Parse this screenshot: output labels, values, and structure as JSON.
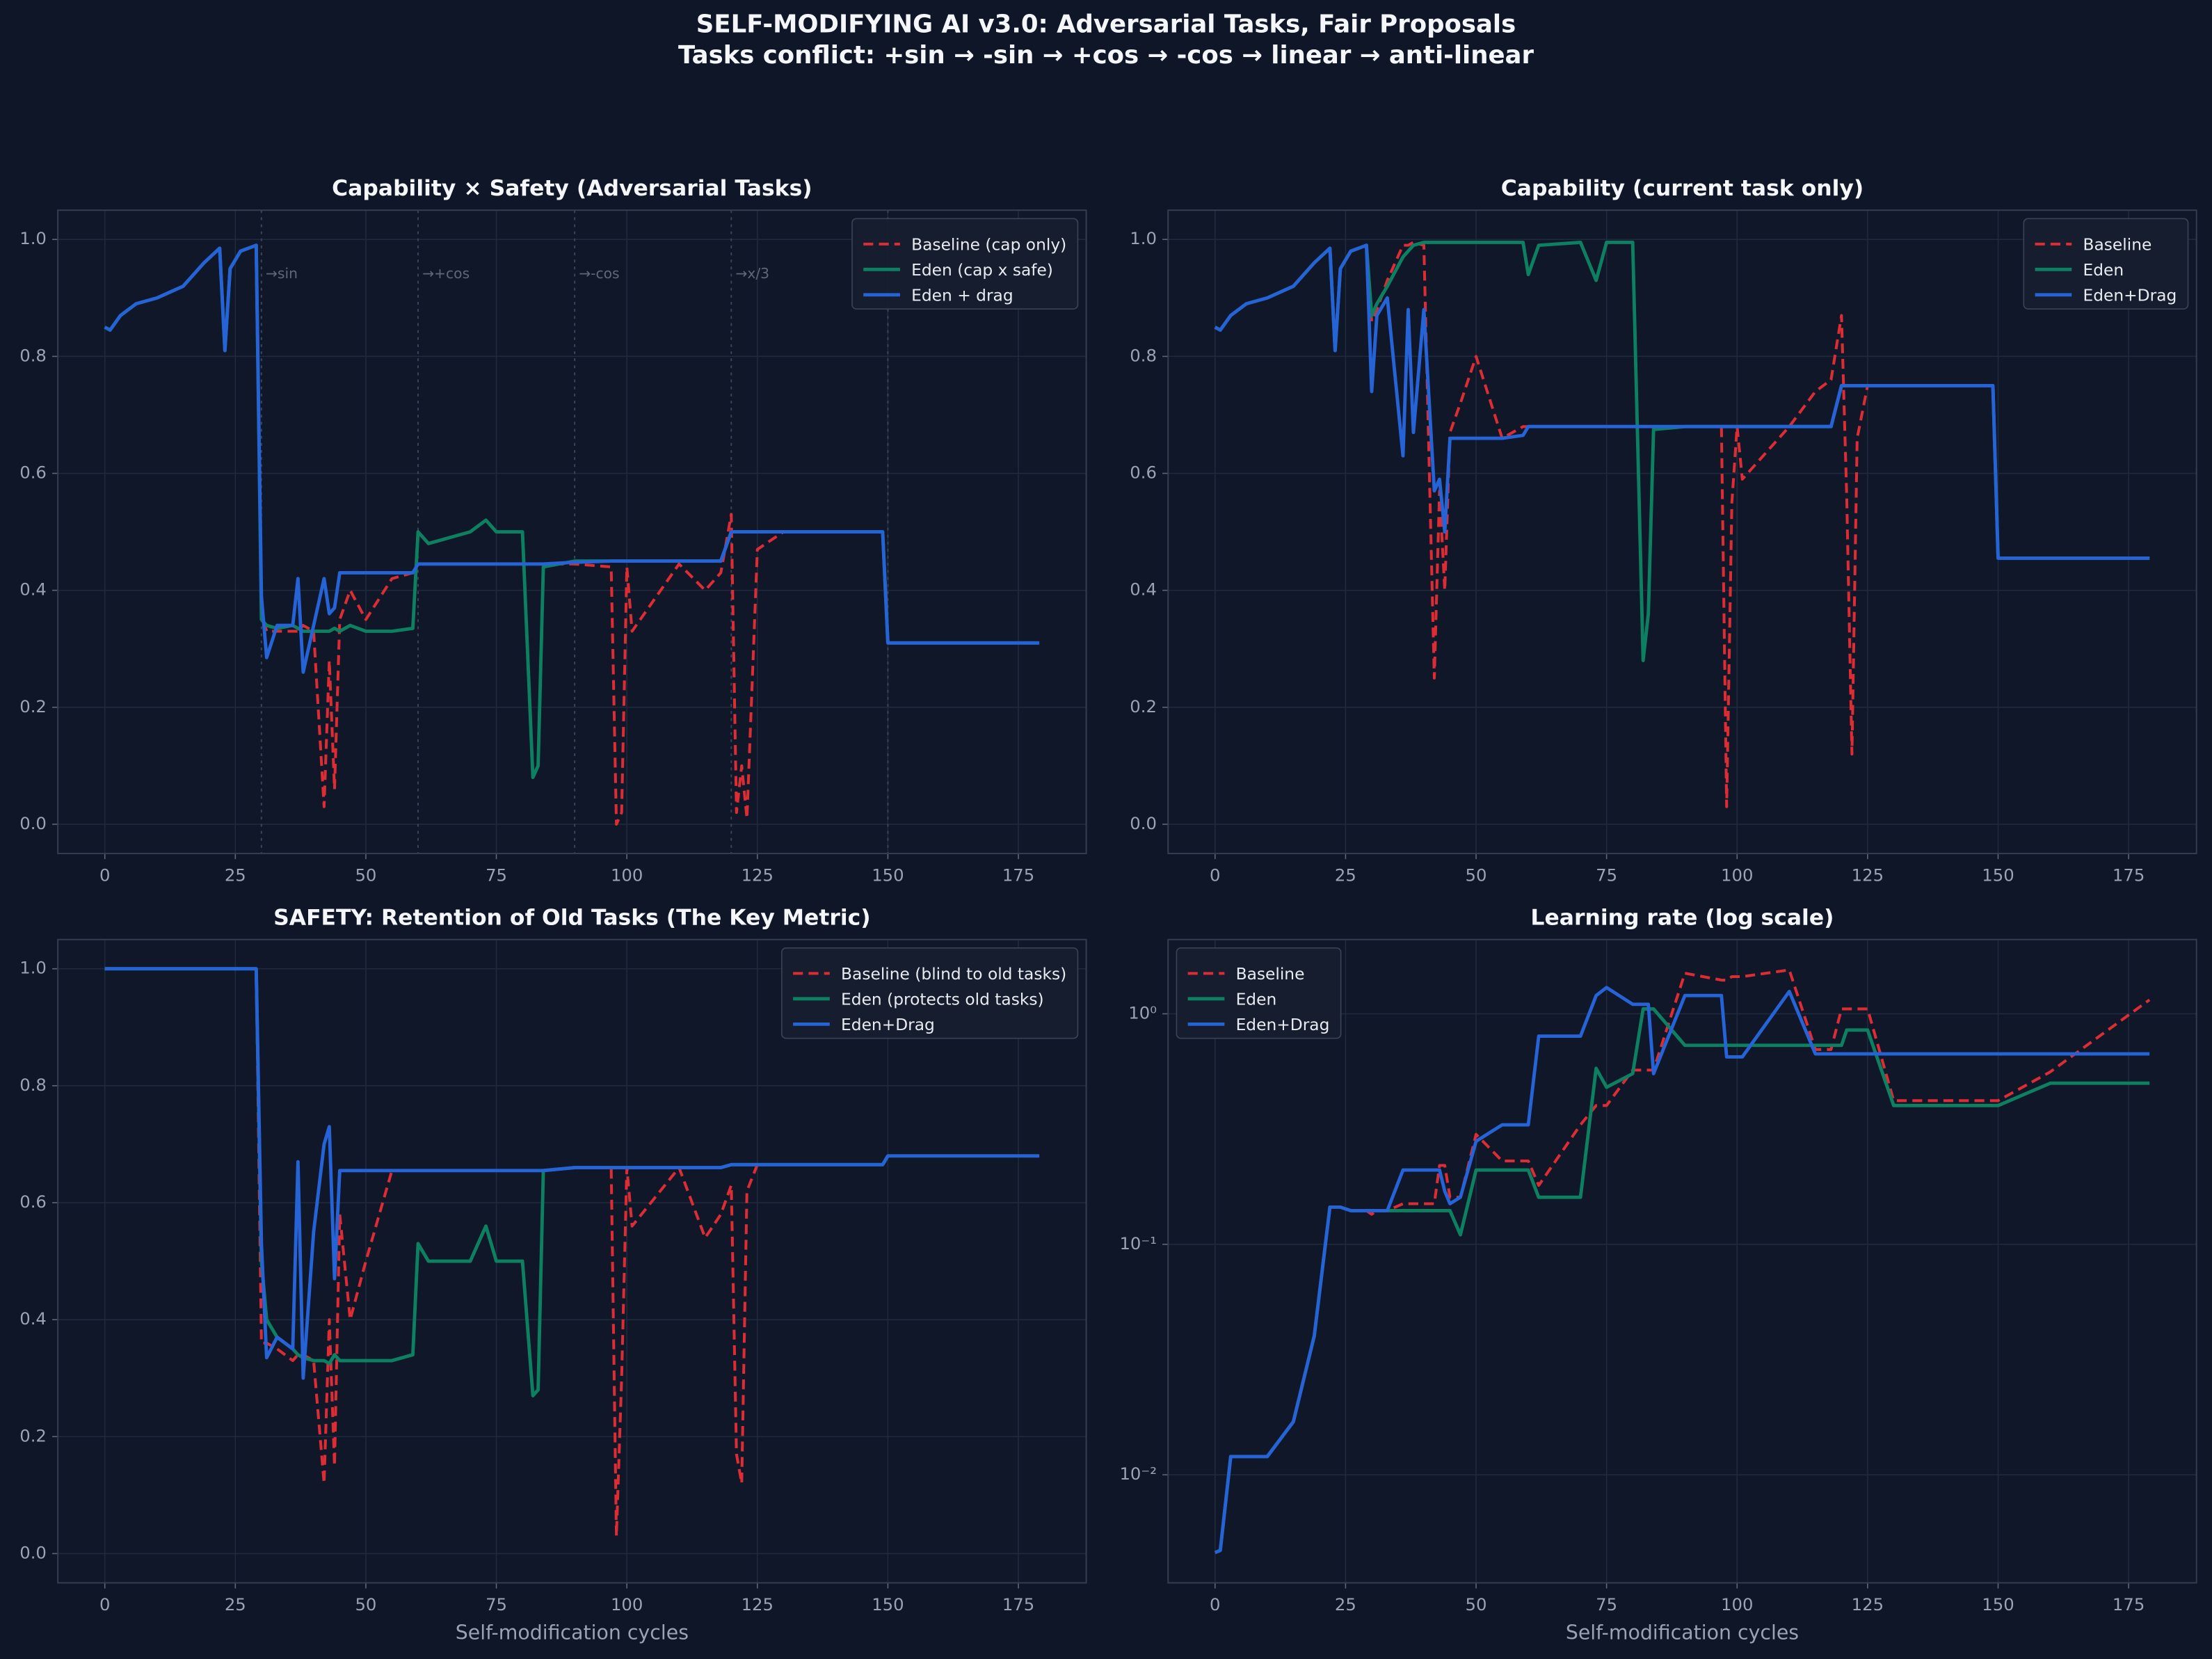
{
  "title": "SELF-MODIFYING AI v3.0: Adversarial Tasks, Fair Proposals",
  "subtitle": "Tasks conflict: +sin → -sin → +cos → -cos → linear → anti-linear",
  "chart_data": [
    {
      "type": "line",
      "title": "Capability × Safety (Adversarial Tasks)",
      "grid": true,
      "legend": "upper right",
      "xlim": [
        -9,
        188
      ],
      "ylim": [
        -0.05,
        1.05
      ],
      "xticks": [
        0,
        25,
        50,
        75,
        100,
        125,
        150,
        175
      ],
      "yticks": [
        {
          "value": 0,
          "label": "0.0"
        },
        0.2,
        0.4,
        0.6,
        0.8,
        {
          "value": 1,
          "label": "1.0"
        }
      ],
      "vlines": [
        30,
        60,
        90,
        120,
        150
      ],
      "annotations": [
        {
          "x": 30,
          "text": "→sin"
        },
        {
          "x": 60,
          "text": "→+cos"
        },
        {
          "x": 90,
          "text": "→-cos"
        },
        {
          "x": 120,
          "text": "→x/3"
        }
      ],
      "x": [
        0,
        1,
        3,
        6,
        10,
        15,
        19,
        22,
        23,
        24,
        26,
        29,
        30,
        31,
        33,
        36,
        37,
        38,
        40,
        42,
        43,
        44,
        45,
        47,
        50,
        55,
        59,
        60,
        62,
        70,
        73,
        75,
        80,
        82,
        83,
        84,
        90,
        97,
        98,
        99,
        100,
        101,
        110,
        115,
        118,
        120,
        121,
        122,
        123,
        125,
        130,
        149,
        150,
        160,
        179
      ],
      "series": [
        {
          "name": "Baseline (cap only)",
          "color": "#dc2c34",
          "linestyle": "dashed",
          "values": [
            0.85,
            0.845,
            0.87,
            0.89,
            0.9,
            0.92,
            0.96,
            0.985,
            0.81,
            0.95,
            0.98,
            0.99,
            0.36,
            0.33,
            0.33,
            0.33,
            0.33,
            0.34,
            0.33,
            0.03,
            0.28,
            0.06,
            0.35,
            0.4,
            0.35,
            0.42,
            0.43,
            0.445,
            0.445,
            0.445,
            0.445,
            0.445,
            0.445,
            0.445,
            0.445,
            0.445,
            0.445,
            0.44,
            0.0,
            0.02,
            0.44,
            0.33,
            0.445,
            0.4,
            0.43,
            0.53,
            0.02,
            0.1,
            0.01,
            0.47,
            0.5,
            0.5,
            0.31,
            0.31,
            0.31
          ]
        },
        {
          "name": "Eden (cap x safe)",
          "color": "#0e8062",
          "linestyle": "solid",
          "values": [
            0.85,
            0.845,
            0.87,
            0.89,
            0.9,
            0.92,
            0.96,
            0.985,
            0.81,
            0.95,
            0.98,
            0.99,
            0.35,
            0.34,
            0.335,
            0.34,
            0.335,
            0.33,
            0.33,
            0.33,
            0.33,
            0.335,
            0.33,
            0.34,
            0.33,
            0.33,
            0.335,
            0.5,
            0.48,
            0.5,
            0.52,
            0.5,
            0.5,
            0.08,
            0.1,
            0.44,
            0.45,
            0.45,
            0.45,
            0.45,
            0.45,
            0.45,
            0.45,
            0.45,
            0.45,
            0.5,
            0.5,
            0.5,
            0.5,
            0.5,
            0.5,
            0.5,
            0.31,
            0.31,
            0.31
          ]
        },
        {
          "name": "Eden + drag",
          "color": "#2563d6",
          "linestyle": "solid",
          "values": [
            0.85,
            0.845,
            0.87,
            0.89,
            0.9,
            0.92,
            0.96,
            0.985,
            0.81,
            0.95,
            0.98,
            0.99,
            0.39,
            0.285,
            0.34,
            0.34,
            0.42,
            0.26,
            0.34,
            0.42,
            0.36,
            0.37,
            0.43,
            0.43,
            0.43,
            0.43,
            0.43,
            0.445,
            0.445,
            0.445,
            0.445,
            0.445,
            0.445,
            0.445,
            0.445,
            0.445,
            0.448,
            0.45,
            0.45,
            0.45,
            0.45,
            0.45,
            0.45,
            0.45,
            0.45,
            0.5,
            0.5,
            0.5,
            0.5,
            0.5,
            0.5,
            0.5,
            0.31,
            0.31,
            0.31
          ]
        }
      ]
    },
    {
      "type": "line",
      "title": "Capability (current task only)",
      "grid": true,
      "legend": "upper right",
      "xlim": [
        -9,
        188
      ],
      "ylim": [
        -0.05,
        1.05
      ],
      "xticks": [
        0,
        25,
        50,
        75,
        100,
        125,
        150,
        175
      ],
      "yticks": [
        {
          "value": 0,
          "label": "0.0"
        },
        0.2,
        0.4,
        0.6,
        0.8,
        {
          "value": 1,
          "label": "1.0"
        }
      ],
      "x": [
        0,
        1,
        3,
        6,
        10,
        15,
        19,
        22,
        23,
        24,
        26,
        29,
        30,
        31,
        33,
        36,
        37,
        38,
        40,
        42,
        43,
        44,
        45,
        47,
        50,
        55,
        59,
        60,
        62,
        70,
        73,
        75,
        80,
        82,
        83,
        84,
        90,
        97,
        98,
        99,
        100,
        101,
        110,
        115,
        118,
        120,
        121,
        122,
        123,
        125,
        130,
        149,
        150,
        160,
        179
      ],
      "series": [
        {
          "name": "Baseline",
          "color": "#dc2c34",
          "linestyle": "dashed",
          "values": [
            0.85,
            0.845,
            0.87,
            0.89,
            0.9,
            0.92,
            0.96,
            0.985,
            0.81,
            0.95,
            0.98,
            0.99,
            0.86,
            0.88,
            0.93,
            0.99,
            0.99,
            0.995,
            0.99,
            0.25,
            0.57,
            0.4,
            0.67,
            0.72,
            0.8,
            0.66,
            0.68,
            0.68,
            0.68,
            0.68,
            0.68,
            0.68,
            0.68,
            0.68,
            0.68,
            0.68,
            0.68,
            0.68,
            0.03,
            0.55,
            0.68,
            0.59,
            0.68,
            0.74,
            0.76,
            0.87,
            0.56,
            0.12,
            0.66,
            0.75,
            0.75,
            0.75,
            0.455,
            0.455,
            0.455
          ]
        },
        {
          "name": "Eden",
          "color": "#0e8062",
          "linestyle": "solid",
          "values": [
            0.85,
            0.845,
            0.87,
            0.89,
            0.9,
            0.92,
            0.96,
            0.985,
            0.81,
            0.95,
            0.98,
            0.99,
            0.87,
            0.89,
            0.92,
            0.97,
            0.98,
            0.99,
            0.995,
            0.995,
            0.995,
            0.995,
            0.995,
            0.995,
            0.995,
            0.995,
            0.995,
            0.94,
            0.99,
            0.995,
            0.93,
            0.995,
            0.995,
            0.28,
            0.36,
            0.675,
            0.68,
            0.68,
            0.68,
            0.68,
            0.68,
            0.68,
            0.68,
            0.68,
            0.68,
            0.75,
            0.75,
            0.75,
            0.75,
            0.75,
            0.75,
            0.75,
            0.455,
            0.455,
            0.455
          ]
        },
        {
          "name": "Eden+Drag",
          "color": "#2563d6",
          "linestyle": "solid",
          "values": [
            0.85,
            0.845,
            0.87,
            0.89,
            0.9,
            0.92,
            0.96,
            0.985,
            0.81,
            0.95,
            0.98,
            0.99,
            0.74,
            0.87,
            0.9,
            0.63,
            0.88,
            0.67,
            0.88,
            0.57,
            0.59,
            0.5,
            0.66,
            0.66,
            0.66,
            0.66,
            0.665,
            0.68,
            0.68,
            0.68,
            0.68,
            0.68,
            0.68,
            0.68,
            0.68,
            0.68,
            0.68,
            0.68,
            0.68,
            0.68,
            0.68,
            0.68,
            0.68,
            0.68,
            0.68,
            0.75,
            0.75,
            0.75,
            0.75,
            0.75,
            0.75,
            0.75,
            0.455,
            0.455,
            0.455
          ]
        }
      ]
    },
    {
      "type": "line",
      "title": "SAFETY: Retention of Old Tasks (The Key Metric)",
      "xlabel": "Self-modification cycles",
      "grid": true,
      "legend": "upper right",
      "xlim": [
        -9,
        188
      ],
      "ylim": [
        -0.05,
        1.05
      ],
      "xticks": [
        0,
        25,
        50,
        75,
        100,
        125,
        150,
        175
      ],
      "yticks": [
        {
          "value": 0,
          "label": "0.0"
        },
        0.2,
        0.4,
        0.6,
        0.8,
        {
          "value": 1,
          "label": "1.0"
        }
      ],
      "x": [
        0,
        1,
        3,
        6,
        10,
        15,
        19,
        22,
        23,
        24,
        26,
        29,
        30,
        31,
        33,
        36,
        37,
        38,
        40,
        42,
        43,
        44,
        45,
        47,
        50,
        55,
        59,
        60,
        62,
        70,
        73,
        75,
        80,
        82,
        83,
        84,
        90,
        97,
        98,
        99,
        100,
        101,
        110,
        115,
        118,
        120,
        121,
        122,
        123,
        125,
        130,
        149,
        150,
        160,
        179
      ],
      "series": [
        {
          "name": "Baseline (blind to old tasks)",
          "color": "#dc2c34",
          "linestyle": "dashed",
          "values": [
            1,
            1,
            1,
            1,
            1,
            1,
            1,
            1,
            1,
            1,
            1,
            1,
            0.36,
            0.36,
            0.35,
            0.33,
            0.34,
            0.34,
            0.33,
            0.12,
            0.4,
            0.15,
            0.58,
            0.4,
            0.5,
            0.655,
            0.655,
            0.655,
            0.655,
            0.655,
            0.655,
            0.655,
            0.655,
            0.655,
            0.655,
            0.655,
            0.66,
            0.66,
            0.03,
            0.3,
            0.66,
            0.56,
            0.66,
            0.54,
            0.58,
            0.63,
            0.17,
            0.12,
            0.62,
            0.665,
            0.665,
            0.665,
            0.68,
            0.68,
            0.68
          ]
        },
        {
          "name": "Eden (protects old tasks)",
          "color": "#0e8062",
          "linestyle": "solid",
          "values": [
            1,
            1,
            1,
            1,
            1,
            1,
            1,
            1,
            1,
            1,
            1,
            1,
            0.5,
            0.4,
            0.37,
            0.35,
            0.34,
            0.335,
            0.33,
            0.33,
            0.325,
            0.34,
            0.33,
            0.33,
            0.33,
            0.33,
            0.34,
            0.53,
            0.5,
            0.5,
            0.56,
            0.5,
            0.5,
            0.27,
            0.28,
            0.655,
            0.66,
            0.66,
            0.66,
            0.66,
            0.66,
            0.66,
            0.66,
            0.66,
            0.66,
            0.665,
            0.665,
            0.665,
            0.665,
            0.665,
            0.665,
            0.665,
            0.68,
            0.68,
            0.68
          ]
        },
        {
          "name": "Eden+Drag",
          "color": "#2563d6",
          "linestyle": "solid",
          "values": [
            1,
            1,
            1,
            1,
            1,
            1,
            1,
            1,
            1,
            1,
            1,
            1,
            0.53,
            0.335,
            0.37,
            0.35,
            0.67,
            0.3,
            0.55,
            0.7,
            0.73,
            0.47,
            0.655,
            0.655,
            0.655,
            0.655,
            0.655,
            0.655,
            0.655,
            0.655,
            0.655,
            0.655,
            0.655,
            0.655,
            0.655,
            0.655,
            0.66,
            0.66,
            0.66,
            0.66,
            0.66,
            0.66,
            0.66,
            0.66,
            0.66,
            0.665,
            0.665,
            0.665,
            0.665,
            0.665,
            0.665,
            0.665,
            0.68,
            0.68,
            0.68
          ]
        }
      ]
    },
    {
      "type": "line",
      "title": "Learning rate (log scale)",
      "xlabel": "Self-modification cycles",
      "grid": true,
      "legend": "upper left",
      "ylog": true,
      "xlim": [
        -9,
        188
      ],
      "ylim": [
        0.0034,
        2.1
      ],
      "xticks": [
        0,
        25,
        50,
        75,
        100,
        125,
        150,
        175
      ],
      "yticks": [
        {
          "value": 0.01,
          "label": "10⁻²"
        },
        {
          "value": 0.1,
          "label": "10⁻¹"
        },
        {
          "value": 1,
          "label": "10⁰"
        }
      ],
      "x": [
        0,
        1,
        3,
        6,
        10,
        15,
        19,
        22,
        23,
        24,
        26,
        29,
        30,
        31,
        33,
        36,
        37,
        38,
        40,
        42,
        43,
        44,
        45,
        47,
        50,
        55,
        59,
        60,
        62,
        70,
        73,
        75,
        80,
        82,
        83,
        84,
        90,
        97,
        98,
        99,
        100,
        101,
        110,
        115,
        118,
        120,
        121,
        122,
        123,
        125,
        130,
        149,
        150,
        160,
        179
      ],
      "series": [
        {
          "name": "Baseline",
          "color": "#dc2c34",
          "linestyle": "dashed",
          "values": [
            0.0046,
            0.0047,
            0.012,
            0.012,
            0.012,
            0.017,
            0.04,
            0.145,
            0.145,
            0.145,
            0.14,
            0.14,
            0.135,
            0.14,
            0.14,
            0.15,
            0.15,
            0.15,
            0.15,
            0.15,
            0.22,
            0.22,
            0.16,
            0.16,
            0.3,
            0.23,
            0.23,
            0.23,
            0.18,
            0.33,
            0.4,
            0.4,
            0.57,
            0.57,
            0.57,
            0.57,
            1.5,
            1.4,
            1.4,
            1.45,
            1.45,
            1.45,
            1.55,
            0.7,
            0.7,
            1.05,
            1.05,
            1.05,
            1.05,
            1.05,
            0.42,
            0.42,
            0.42,
            0.56,
            1.15
          ]
        },
        {
          "name": "Eden",
          "color": "#0e8062",
          "linestyle": "solid",
          "values": [
            0.0046,
            0.0047,
            0.012,
            0.012,
            0.012,
            0.017,
            0.04,
            0.145,
            0.145,
            0.145,
            0.14,
            0.14,
            0.14,
            0.14,
            0.14,
            0.14,
            0.14,
            0.14,
            0.14,
            0.14,
            0.14,
            0.14,
            0.14,
            0.11,
            0.21,
            0.21,
            0.21,
            0.21,
            0.16,
            0.16,
            0.58,
            0.48,
            0.55,
            1.05,
            1.05,
            1.05,
            0.73,
            0.73,
            0.73,
            0.73,
            0.73,
            0.73,
            0.73,
            0.73,
            0.73,
            0.73,
            0.85,
            0.85,
            0.85,
            0.85,
            0.4,
            0.4,
            0.4,
            0.5,
            0.5
          ]
        },
        {
          "name": "Eden+Drag",
          "color": "#2563d6",
          "linestyle": "solid",
          "values": [
            0.0046,
            0.0047,
            0.012,
            0.012,
            0.012,
            0.017,
            0.04,
            0.145,
            0.145,
            0.145,
            0.14,
            0.14,
            0.14,
            0.14,
            0.14,
            0.21,
            0.21,
            0.21,
            0.21,
            0.21,
            0.21,
            0.17,
            0.15,
            0.16,
            0.28,
            0.33,
            0.33,
            0.33,
            0.8,
            0.8,
            1.2,
            1.3,
            1.1,
            1.1,
            1.1,
            0.55,
            1.2,
            1.2,
            0.65,
            0.65,
            0.65,
            0.65,
            1.25,
            0.67,
            0.67,
            0.67,
            0.67,
            0.67,
            0.67,
            0.67,
            0.67,
            0.67,
            0.67,
            0.67,
            0.67
          ]
        }
      ]
    }
  ]
}
